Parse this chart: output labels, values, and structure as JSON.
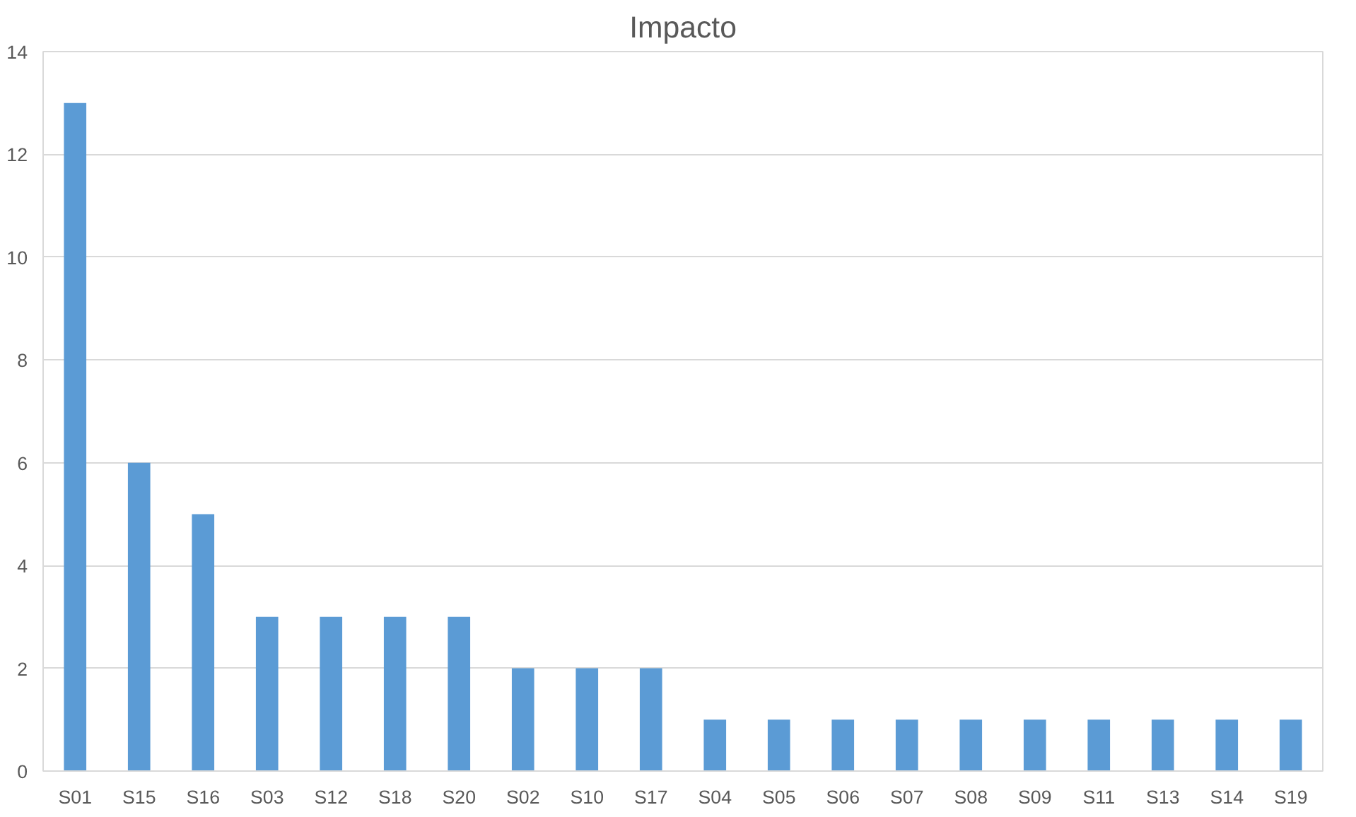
{
  "chart_data": {
    "type": "bar",
    "title": "Impacto",
    "categories": [
      "S01",
      "S15",
      "S16",
      "S03",
      "S12",
      "S18",
      "S20",
      "S02",
      "S10",
      "S17",
      "S04",
      "S05",
      "S06",
      "S07",
      "S08",
      "S09",
      "S11",
      "S13",
      "S14",
      "S19"
    ],
    "values": [
      13,
      6,
      5,
      3,
      3,
      3,
      3,
      2,
      2,
      2,
      1,
      1,
      1,
      1,
      1,
      1,
      1,
      1,
      1,
      1
    ],
    "color": "#5b9bd5",
    "ylim": [
      0,
      14
    ],
    "yticks": [
      0,
      2,
      4,
      6,
      8,
      10,
      12,
      14
    ],
    "grid": "y"
  }
}
